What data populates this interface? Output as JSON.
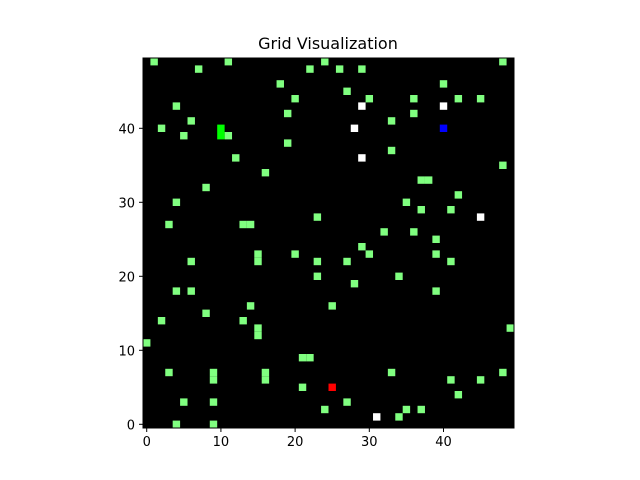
{
  "chart_data": {
    "type": "heatmap",
    "title": "Grid Visualization",
    "xlabel": "",
    "ylabel": "",
    "grid_size": [
      50,
      50
    ],
    "xlim": [
      -0.5,
      49.5
    ],
    "ylim": [
      -0.5,
      49.5
    ],
    "origin": "lower",
    "x_ticks": [
      0,
      10,
      20,
      30,
      40
    ],
    "y_ticks": [
      0,
      10,
      20,
      30,
      40
    ],
    "grid": false,
    "legend": "none",
    "colors": {
      "empty": "#000000",
      "cell": "#80ff80",
      "bright_cell": "#00ff00",
      "white_cell": "#ffffff",
      "blue_cell": "#0000ff",
      "red_cell": "#ff0000"
    },
    "cells": {
      "green": [
        [
          1,
          49
        ],
        [
          7,
          48
        ],
        [
          11,
          49
        ],
        [
          22,
          48
        ],
        [
          24,
          49
        ],
        [
          26,
          48
        ],
        [
          29,
          48
        ],
        [
          48,
          49
        ],
        [
          18,
          46
        ],
        [
          40,
          46
        ],
        [
          27,
          45
        ],
        [
          20,
          44
        ],
        [
          30,
          44
        ],
        [
          36,
          44
        ],
        [
          42,
          44
        ],
        [
          45,
          44
        ],
        [
          4,
          43
        ],
        [
          19,
          42
        ],
        [
          36,
          42
        ],
        [
          6,
          41
        ],
        [
          33,
          41
        ],
        [
          2,
          40
        ],
        [
          5,
          39
        ],
        [
          11,
          39
        ],
        [
          19,
          38
        ],
        [
          33,
          37
        ],
        [
          12,
          36
        ],
        [
          48,
          35
        ],
        [
          16,
          34
        ],
        [
          37,
          33
        ],
        [
          38,
          33
        ],
        [
          8,
          32
        ],
        [
          42,
          31
        ],
        [
          4,
          30
        ],
        [
          35,
          30
        ],
        [
          37,
          29
        ],
        [
          41,
          29
        ],
        [
          23,
          28
        ],
        [
          3,
          27
        ],
        [
          13,
          27
        ],
        [
          14,
          27
        ],
        [
          32,
          26
        ],
        [
          36,
          26
        ],
        [
          39,
          25
        ],
        [
          29,
          24
        ],
        [
          20,
          23
        ],
        [
          30,
          23
        ],
        [
          39,
          23
        ],
        [
          15,
          23
        ],
        [
          6,
          22
        ],
        [
          15,
          22
        ],
        [
          23,
          22
        ],
        [
          27,
          22
        ],
        [
          41,
          22
        ],
        [
          23,
          20
        ],
        [
          34,
          20
        ],
        [
          28,
          19
        ],
        [
          4,
          18
        ],
        [
          6,
          18
        ],
        [
          39,
          18
        ],
        [
          14,
          16
        ],
        [
          25,
          16
        ],
        [
          8,
          15
        ],
        [
          2,
          14
        ],
        [
          13,
          14
        ],
        [
          15,
          13
        ],
        [
          49,
          13
        ],
        [
          15,
          12
        ],
        [
          0,
          11
        ],
        [
          21,
          9
        ],
        [
          22,
          9
        ],
        [
          3,
          7
        ],
        [
          9,
          7
        ],
        [
          16,
          7
        ],
        [
          33,
          7
        ],
        [
          48,
          7
        ],
        [
          9,
          6
        ],
        [
          16,
          6
        ],
        [
          41,
          6
        ],
        [
          45,
          6
        ],
        [
          21,
          5
        ],
        [
          42,
          4
        ],
        [
          5,
          3
        ],
        [
          9,
          3
        ],
        [
          27,
          3
        ],
        [
          24,
          2
        ],
        [
          35,
          2
        ],
        [
          37,
          2
        ],
        [
          34,
          1
        ],
        [
          4,
          0
        ],
        [
          9,
          0
        ]
      ],
      "bright_green": [
        [
          10,
          40
        ],
        [
          10,
          39
        ]
      ],
      "white": [
        [
          29,
          43
        ],
        [
          40,
          43
        ],
        [
          28,
          40
        ],
        [
          29,
          36
        ],
        [
          45,
          28
        ],
        [
          31,
          1
        ]
      ],
      "blue": [
        [
          40,
          40
        ]
      ],
      "red": [
        [
          25,
          5
        ]
      ]
    }
  }
}
